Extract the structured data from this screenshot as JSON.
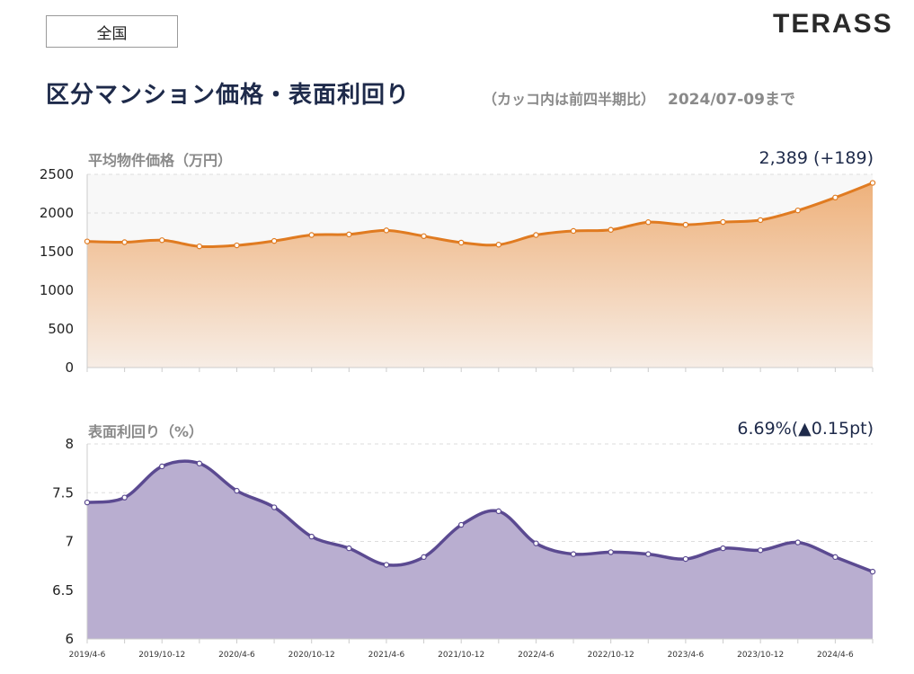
{
  "header": {
    "region": "全国",
    "brand": "TERASS",
    "title": "区分マンション価格・表面利回り",
    "subtitle": "（カッコ内は前四半期比）",
    "as_of": "2024/07-09まで"
  },
  "chart_data": [
    {
      "type": "area",
      "title": "平均物件価格（万円）",
      "latest_label": "2,389 (+189)",
      "ylim": [
        0,
        2500
      ],
      "yticks": [
        0,
        500,
        1000,
        1500,
        2000,
        2500
      ],
      "x": [
        "2019/4-6",
        "2019/7-9",
        "2019/10-12",
        "2020/1-3",
        "2020/4-6",
        "2020/7-9",
        "2020/10-12",
        "2021/1-3",
        "2021/4-6",
        "2021/7-9",
        "2021/10-12",
        "2022/1-3",
        "2022/4-6",
        "2022/7-9",
        "2022/10-12",
        "2023/1-3",
        "2023/4-6",
        "2023/7-9",
        "2023/10-12",
        "2024/1-3",
        "2024/4-6",
        "2024/7-9"
      ],
      "xtick_labels": [
        "2019/4-6",
        "",
        "2019/10-12",
        "",
        "2020/4-6",
        "",
        "2020/10-12",
        "",
        "2021/4-6",
        "",
        "2021/10-12",
        "",
        "2022/4-6",
        "",
        "2022/10-12",
        "",
        "2023/4-6",
        "",
        "2023/10-12",
        "",
        "2024/4-6",
        ""
      ],
      "values": [
        1632,
        1622,
        1648,
        1568,
        1581,
        1638,
        1715,
        1723,
        1775,
        1700,
        1617,
        1590,
        1715,
        1768,
        1782,
        1881,
        1848,
        1883,
        1908,
        2033,
        2200,
        2389
      ],
      "colors": {
        "line": "#e07b21",
        "fill_top": "#eeb17b",
        "fill_bottom": "#f7ede5",
        "plot_bg": "#f8f8f8"
      },
      "grid": true
    },
    {
      "type": "area",
      "title": "表面利回り（%）",
      "latest_label": "6.69%(▲0.15pt)",
      "ylim": [
        6,
        8
      ],
      "yticks": [
        6,
        6.5,
        7,
        7.5,
        8
      ],
      "x": [
        "2019/4-6",
        "2019/7-9",
        "2019/10-12",
        "2020/1-3",
        "2020/4-6",
        "2020/7-9",
        "2020/10-12",
        "2021/1-3",
        "2021/4-6",
        "2021/7-9",
        "2021/10-12",
        "2022/1-3",
        "2022/4-6",
        "2022/7-9",
        "2022/10-12",
        "2023/1-3",
        "2023/4-6",
        "2023/7-9",
        "2023/10-12",
        "2024/1-3",
        "2024/4-6",
        "2024/7-9"
      ],
      "xtick_labels": [
        "2019/4-6",
        "",
        "2019/10-12",
        "",
        "2020/4-6",
        "",
        "2020/10-12",
        "",
        "2021/4-6",
        "",
        "2021/10-12",
        "",
        "2022/4-6",
        "",
        "2022/10-12",
        "",
        "2023/4-6",
        "",
        "2023/10-12",
        "",
        "2024/4-6",
        ""
      ],
      "values": [
        7.4,
        7.45,
        7.77,
        7.8,
        7.52,
        7.35,
        7.05,
        6.93,
        6.76,
        6.84,
        7.17,
        7.31,
        6.98,
        6.87,
        6.89,
        6.87,
        6.82,
        6.93,
        6.91,
        6.99,
        6.84,
        6.69
      ],
      "colors": {
        "line": "#5b4a91",
        "fill": "#b9aed0",
        "plot_bg": "#ffffff"
      },
      "grid": true
    }
  ]
}
